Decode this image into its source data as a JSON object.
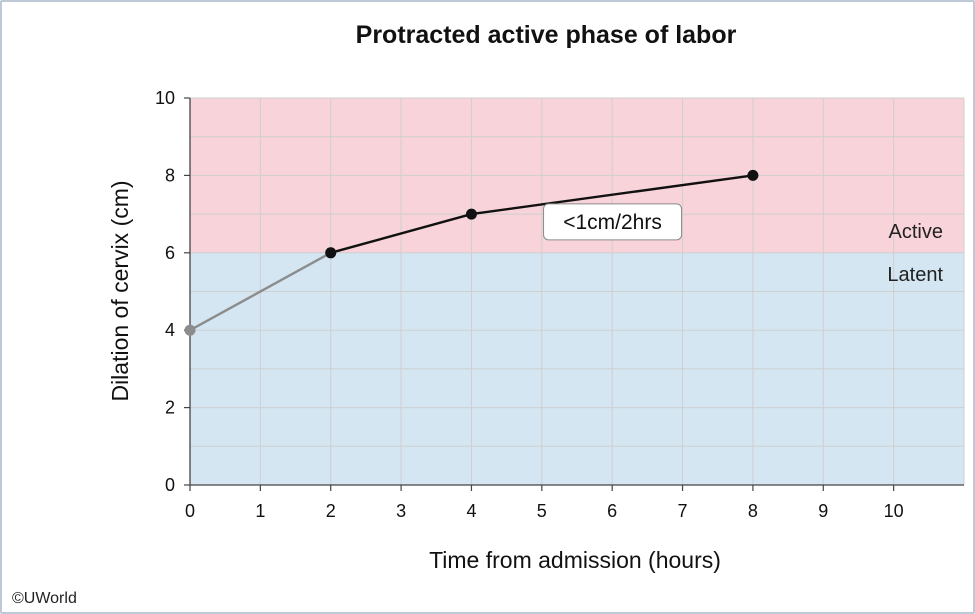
{
  "chart_data": {
    "type": "line",
    "title": "Protracted active phase of labor",
    "xlabel": "Time from admission (hours)",
    "ylabel": "Dilation of cervix (cm)",
    "xlim": [
      0,
      11
    ],
    "ylim": [
      0,
      10
    ],
    "x_ticks": [
      0,
      1,
      2,
      3,
      4,
      5,
      6,
      7,
      8,
      9,
      10
    ],
    "y_ticks": [
      0,
      2,
      4,
      6,
      8,
      10
    ],
    "grid": true,
    "regions": [
      {
        "name": "Active",
        "y_from": 6,
        "y_to": 10,
        "color": "#f8d3d9"
      },
      {
        "name": "Latent",
        "y_from": 0,
        "y_to": 6,
        "color": "#d3e6f2"
      }
    ],
    "series": [
      {
        "x": [
          0,
          2
        ],
        "y": [
          4,
          6
        ],
        "color": "#8c8c8c"
      },
      {
        "x": [
          2,
          4,
          8
        ],
        "y": [
          6,
          7,
          8
        ],
        "color": "#111111"
      }
    ],
    "annotations": [
      {
        "text": "<1cm/2hrs",
        "x": 7,
        "y": 6.8
      }
    ]
  },
  "credit": "©UWorld"
}
